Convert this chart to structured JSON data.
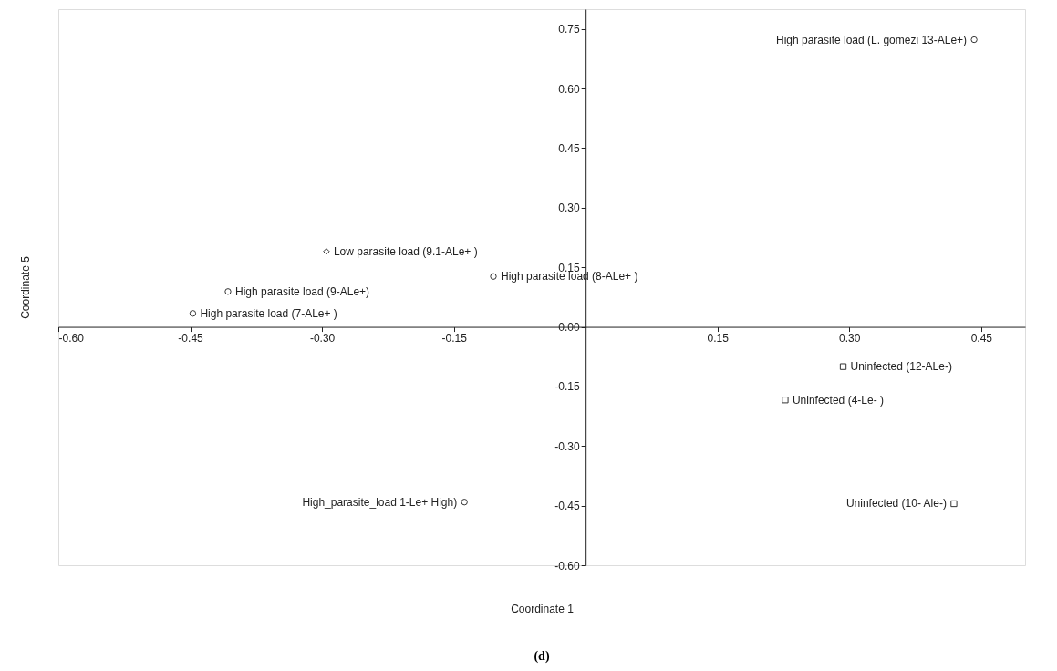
{
  "chart_data": {
    "type": "scatter",
    "xlabel": "Coordinate 1",
    "ylabel": "Coordinate 5",
    "xlim": [
      -0.6,
      0.5
    ],
    "ylim": [
      -0.6,
      0.8
    ],
    "xticks": [
      {
        "value": -0.6,
        "label": "-0.60"
      },
      {
        "value": -0.45,
        "label": "-0.45"
      },
      {
        "value": -0.3,
        "label": "-0.30"
      },
      {
        "value": -0.15,
        "label": "-0.15"
      },
      {
        "value": 0.15,
        "label": "0.15"
      },
      {
        "value": 0.3,
        "label": "0.30"
      },
      {
        "value": 0.45,
        "label": "0.45"
      }
    ],
    "yticks": [
      {
        "value": 0.75,
        "label": "0.75"
      },
      {
        "value": 0.6,
        "label": "0.60"
      },
      {
        "value": 0.45,
        "label": "0.45"
      },
      {
        "value": 0.3,
        "label": "0.30"
      },
      {
        "value": 0.15,
        "label": "0.15"
      },
      {
        "value": 0,
        "label": "0.00"
      },
      {
        "value": -0.15,
        "label": "-0.15"
      },
      {
        "value": -0.3,
        "label": "-0.30"
      },
      {
        "value": -0.45,
        "label": "-0.45"
      },
      {
        "value": -0.6,
        "label": "-0.60"
      }
    ],
    "grid": false,
    "series": [
      {
        "color": "#333333",
        "marker": "circle",
        "x": [
          -0.105,
          -0.407,
          -0.447,
          -0.138,
          0.442
        ],
        "values": [
          0.127,
          0.089,
          0.034,
          -0.441,
          0.723
        ]
      },
      {
        "color": "#333333",
        "marker": "diamond",
        "x": [
          -0.295
        ],
        "values": [
          0.19
        ]
      },
      {
        "color": "#333333",
        "marker": "square",
        "x": [
          0.293,
          0.227,
          0.419
        ],
        "values": [
          -0.1,
          -0.184,
          -0.445
        ]
      }
    ],
    "annotations": [
      {
        "text": "Low parasite load (9.1-ALe+ )",
        "x": -0.295,
        "y": 0.19
      },
      {
        "text": "High parasite load (8-ALe+ )",
        "x": -0.105,
        "y": 0.127
      },
      {
        "text": "High parasite load (9-ALe+)",
        "x": -0.407,
        "y": 0.089
      },
      {
        "text": "High parasite load (7-ALe+ )",
        "x": -0.447,
        "y": 0.034
      },
      {
        "text": "High_parasite_load 1-Le+ High)",
        "x": -0.138,
        "y": -0.441
      },
      {
        "text": "High parasite load (L. gomezi 13-ALe+)",
        "x": 0.442,
        "y": 0.723
      },
      {
        "text": "Uninfected (12-ALe-)",
        "x": 0.293,
        "y": -0.1
      },
      {
        "text": "Uninfected (4-Le- )",
        "x": 0.227,
        "y": -0.184
      },
      {
        "text": "Uninfected (10- Ale-)",
        "x": 0.419,
        "y": -0.445
      },
      "(d)"
    ]
  }
}
